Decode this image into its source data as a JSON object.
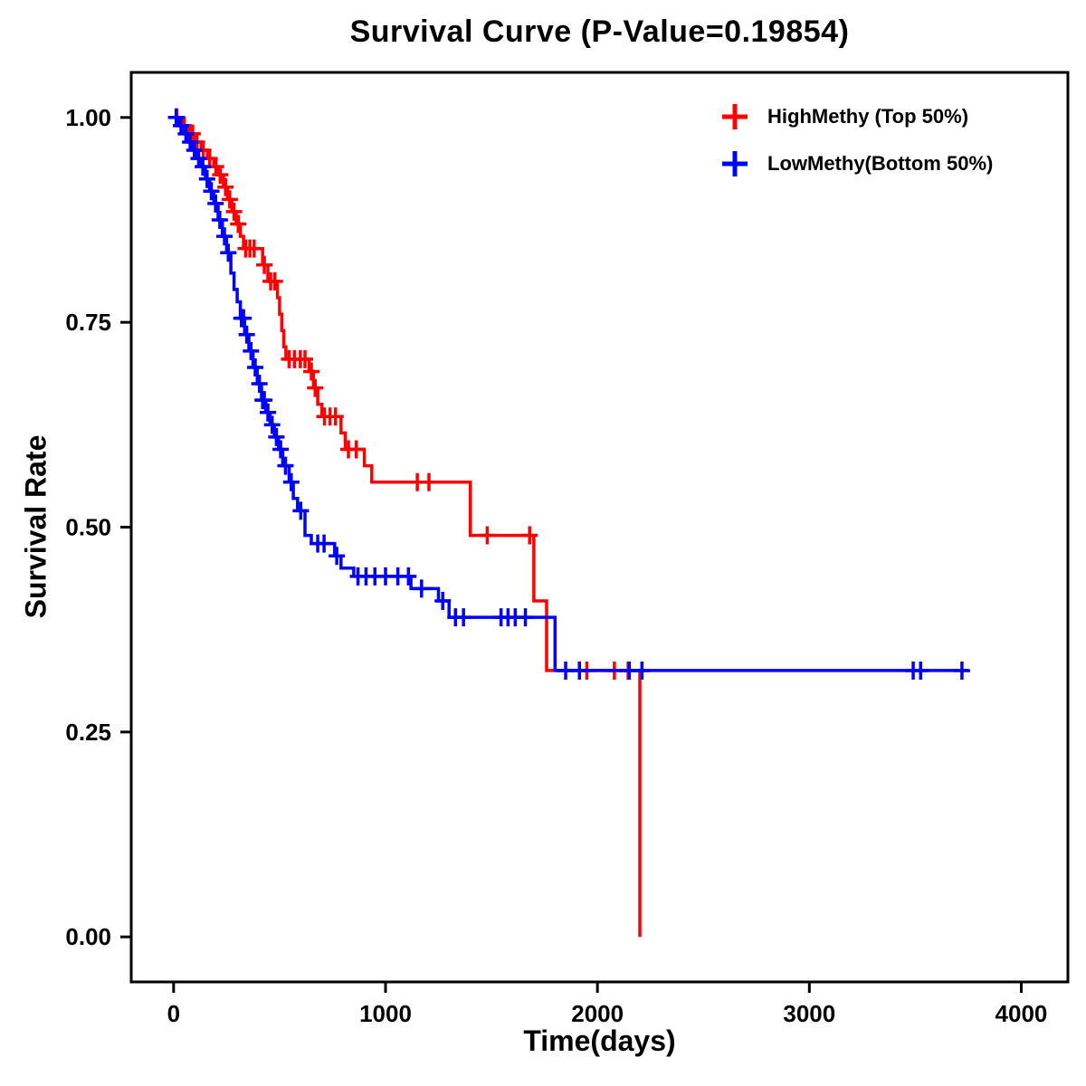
{
  "title": "Survival Curve (P-Value=0.19854)",
  "p_value": "0.19854",
  "chart_data": {
    "type": "line",
    "subtype": "kaplan-meier-step",
    "title": "Survival Curve (P-Value=0.19854)",
    "xlabel": "Time(days)",
    "ylabel": "Survival Rate",
    "xlim": [
      -200,
      4220
    ],
    "ylim": [
      -0.055,
      1.055
    ],
    "x_ticks": [
      0,
      1000,
      2000,
      3000,
      4000
    ],
    "x_tick_labels": [
      "0",
      "1000",
      "2000",
      "3000",
      "4000"
    ],
    "y_ticks": [
      0.0,
      0.25,
      0.5,
      0.75,
      1.0
    ],
    "y_tick_labels": [
      "0.00",
      "0.25",
      "0.50",
      "0.75",
      "1.00"
    ],
    "grid": false,
    "legend_position": "top-right-inside",
    "series": [
      {
        "name": "HighMethy (Top 50%)",
        "color": "#FF0000",
        "steps": [
          [
            0,
            1.0
          ],
          [
            40,
            0.99
          ],
          [
            70,
            0.98
          ],
          [
            100,
            0.97
          ],
          [
            130,
            0.96
          ],
          [
            160,
            0.95
          ],
          [
            190,
            0.94
          ],
          [
            210,
            0.93
          ],
          [
            235,
            0.915
          ],
          [
            255,
            0.9
          ],
          [
            275,
            0.885
          ],
          [
            295,
            0.87
          ],
          [
            315,
            0.855
          ],
          [
            330,
            0.84
          ],
          [
            420,
            0.82
          ],
          [
            445,
            0.8
          ],
          [
            490,
            0.78
          ],
          [
            500,
            0.76
          ],
          [
            510,
            0.74
          ],
          [
            520,
            0.72
          ],
          [
            530,
            0.705
          ],
          [
            640,
            0.69
          ],
          [
            660,
            0.67
          ],
          [
            680,
            0.65
          ],
          [
            700,
            0.635
          ],
          [
            790,
            0.615
          ],
          [
            810,
            0.595
          ],
          [
            900,
            0.575
          ],
          [
            935,
            0.555
          ],
          [
            1400,
            0.49
          ],
          [
            1700,
            0.41
          ],
          [
            1760,
            0.325
          ],
          [
            2200,
            0.325
          ],
          [
            2200,
            0.0
          ]
        ],
        "censors": [
          [
            15,
            1.0
          ],
          [
            50,
            0.99
          ],
          [
            80,
            0.98
          ],
          [
            90,
            0.98
          ],
          [
            110,
            0.97
          ],
          [
            140,
            0.96
          ],
          [
            170,
            0.95
          ],
          [
            200,
            0.94
          ],
          [
            220,
            0.93
          ],
          [
            245,
            0.915
          ],
          [
            265,
            0.9
          ],
          [
            285,
            0.885
          ],
          [
            305,
            0.87
          ],
          [
            340,
            0.84
          ],
          [
            360,
            0.84
          ],
          [
            380,
            0.84
          ],
          [
            428,
            0.82
          ],
          [
            458,
            0.8
          ],
          [
            478,
            0.8
          ],
          [
            545,
            0.705
          ],
          [
            570,
            0.705
          ],
          [
            598,
            0.705
          ],
          [
            620,
            0.705
          ],
          [
            650,
            0.69
          ],
          [
            668,
            0.67
          ],
          [
            712,
            0.635
          ],
          [
            738,
            0.635
          ],
          [
            764,
            0.635
          ],
          [
            825,
            0.595
          ],
          [
            862,
            0.595
          ],
          [
            1150,
            0.555
          ],
          [
            1205,
            0.555
          ],
          [
            1480,
            0.49
          ],
          [
            1680,
            0.49
          ],
          [
            1950,
            0.325
          ],
          [
            2080,
            0.325
          ],
          [
            2145,
            0.325
          ]
        ]
      },
      {
        "name": "LowMethy(Bottom 50%)",
        "color": "#0000FF",
        "steps": [
          [
            0,
            1.0
          ],
          [
            25,
            0.99
          ],
          [
            50,
            0.98
          ],
          [
            70,
            0.97
          ],
          [
            90,
            0.96
          ],
          [
            110,
            0.95
          ],
          [
            130,
            0.94
          ],
          [
            150,
            0.925
          ],
          [
            170,
            0.91
          ],
          [
            190,
            0.895
          ],
          [
            210,
            0.875
          ],
          [
            230,
            0.855
          ],
          [
            250,
            0.835
          ],
          [
            270,
            0.81
          ],
          [
            285,
            0.79
          ],
          [
            300,
            0.775
          ],
          [
            315,
            0.755
          ],
          [
            335,
            0.735
          ],
          [
            355,
            0.715
          ],
          [
            375,
            0.695
          ],
          [
            395,
            0.675
          ],
          [
            415,
            0.655
          ],
          [
            435,
            0.64
          ],
          [
            455,
            0.625
          ],
          [
            475,
            0.61
          ],
          [
            495,
            0.595
          ],
          [
            515,
            0.575
          ],
          [
            545,
            0.555
          ],
          [
            565,
            0.535
          ],
          [
            585,
            0.52
          ],
          [
            620,
            0.49
          ],
          [
            650,
            0.48
          ],
          [
            760,
            0.465
          ],
          [
            790,
            0.45
          ],
          [
            850,
            0.44
          ],
          [
            1120,
            0.425
          ],
          [
            1250,
            0.41
          ],
          [
            1300,
            0.39
          ],
          [
            1800,
            0.325
          ],
          [
            3750,
            0.325
          ]
        ],
        "censors": [
          [
            12,
            1.0
          ],
          [
            35,
            0.99
          ],
          [
            58,
            0.98
          ],
          [
            78,
            0.97
          ],
          [
            98,
            0.96
          ],
          [
            118,
            0.95
          ],
          [
            138,
            0.94
          ],
          [
            158,
            0.925
          ],
          [
            178,
            0.91
          ],
          [
            198,
            0.895
          ],
          [
            218,
            0.875
          ],
          [
            240,
            0.855
          ],
          [
            258,
            0.835
          ],
          [
            320,
            0.755
          ],
          [
            330,
            0.755
          ],
          [
            345,
            0.735
          ],
          [
            365,
            0.715
          ],
          [
            385,
            0.695
          ],
          [
            405,
            0.675
          ],
          [
            420,
            0.655
          ],
          [
            428,
            0.655
          ],
          [
            445,
            0.64
          ],
          [
            465,
            0.625
          ],
          [
            485,
            0.61
          ],
          [
            505,
            0.595
          ],
          [
            528,
            0.575
          ],
          [
            555,
            0.555
          ],
          [
            600,
            0.52
          ],
          [
            680,
            0.48
          ],
          [
            710,
            0.48
          ],
          [
            770,
            0.465
          ],
          [
            870,
            0.44
          ],
          [
            908,
            0.44
          ],
          [
            950,
            0.44
          ],
          [
            1000,
            0.44
          ],
          [
            1058,
            0.44
          ],
          [
            1108,
            0.44
          ],
          [
            1170,
            0.425
          ],
          [
            1270,
            0.41
          ],
          [
            1330,
            0.39
          ],
          [
            1368,
            0.39
          ],
          [
            1545,
            0.39
          ],
          [
            1578,
            0.39
          ],
          [
            1612,
            0.39
          ],
          [
            1660,
            0.39
          ],
          [
            1850,
            0.325
          ],
          [
            1915,
            0.325
          ],
          [
            2150,
            0.325
          ],
          [
            2210,
            0.325
          ],
          [
            3490,
            0.325
          ],
          [
            3525,
            0.325
          ],
          [
            3720,
            0.325
          ]
        ]
      }
    ]
  }
}
